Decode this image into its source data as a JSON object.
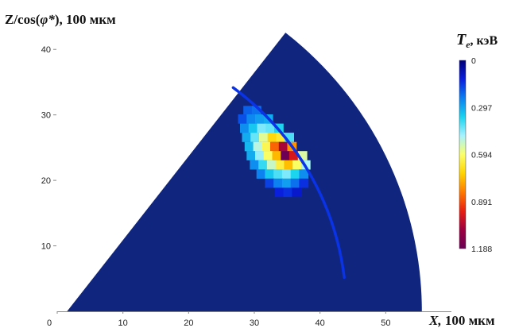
{
  "chart_data": {
    "type": "heatmap",
    "title": "",
    "ylabel_base": "Z/cos(",
    "ylabel_symbol": "φ*",
    "ylabel_tail": "), 100 мкм",
    "xlabel_base": "X,",
    "xlabel_unit": " 100 мкм",
    "colorbar_symbol": "T",
    "colorbar_sub": "e",
    "colorbar_unit": ", кэВ",
    "xlim": [
      0,
      60
    ],
    "ylim": [
      0,
      45
    ],
    "x_ticks": [
      "0",
      "10",
      "20",
      "30",
      "40",
      "50"
    ],
    "y_ticks": [
      "10",
      "20",
      "30",
      "40"
    ],
    "colorbar_ticks": [
      "0",
      "0.297",
      "0.594",
      "0.891",
      "1.188"
    ],
    "colorbar_range": [
      0,
      1.188
    ],
    "colorscale": [
      "#00007a",
      "#0a1edc",
      "#0c7ff0",
      "#19d3ef",
      "#a8f2ff",
      "#fbff6a",
      "#ffd400",
      "#ff7a00",
      "#e81f12",
      "#9c0040",
      "#6a0055"
    ],
    "background_color": "#10267e",
    "arc_color": "#0a32e6",
    "sector": {
      "apex": [
        1.5,
        0
      ],
      "radius": 54,
      "angle_deg": 52
    },
    "front_arc": {
      "center": [
        1.5,
        0
      ],
      "radius": 42.5,
      "angle_from_deg": 7,
      "angle_to_deg": 53.5
    },
    "hot_spot": {
      "cell_size": [
        1.35,
        1.35
      ],
      "cells": [
        {
          "x": 29.0,
          "y": 30.7,
          "t": 0.2
        },
        {
          "x": 30.3,
          "y": 30.7,
          "t": 0.22
        },
        {
          "x": 28.2,
          "y": 29.4,
          "t": 0.18
        },
        {
          "x": 29.5,
          "y": 29.4,
          "t": 0.25
        },
        {
          "x": 30.8,
          "y": 29.4,
          "t": 0.28
        },
        {
          "x": 32.1,
          "y": 29.4,
          "t": 0.3
        },
        {
          "x": 28.5,
          "y": 28.0,
          "t": 0.26
        },
        {
          "x": 29.8,
          "y": 28.0,
          "t": 0.34
        },
        {
          "x": 31.1,
          "y": 28.0,
          "t": 0.44
        },
        {
          "x": 32.4,
          "y": 28.0,
          "t": 0.42
        },
        {
          "x": 33.7,
          "y": 28.0,
          "t": 0.36
        },
        {
          "x": 28.8,
          "y": 26.6,
          "t": 0.3
        },
        {
          "x": 30.1,
          "y": 26.6,
          "t": 0.42
        },
        {
          "x": 31.4,
          "y": 26.6,
          "t": 0.56
        },
        {
          "x": 32.7,
          "y": 26.6,
          "t": 0.7
        },
        {
          "x": 34.0,
          "y": 26.6,
          "t": 0.66
        },
        {
          "x": 35.3,
          "y": 26.6,
          "t": 0.4
        },
        {
          "x": 29.2,
          "y": 25.2,
          "t": 0.32
        },
        {
          "x": 30.5,
          "y": 25.2,
          "t": 0.5
        },
        {
          "x": 31.8,
          "y": 25.2,
          "t": 0.62
        },
        {
          "x": 33.1,
          "y": 25.2,
          "t": 0.86
        },
        {
          "x": 34.4,
          "y": 25.2,
          "t": 1.05
        },
        {
          "x": 35.7,
          "y": 25.2,
          "t": 0.8
        },
        {
          "x": 29.5,
          "y": 23.8,
          "t": 0.3
        },
        {
          "x": 30.8,
          "y": 23.8,
          "t": 0.46
        },
        {
          "x": 32.1,
          "y": 23.8,
          "t": 0.6
        },
        {
          "x": 33.4,
          "y": 23.8,
          "t": 0.75
        },
        {
          "x": 34.7,
          "y": 23.8,
          "t": 1.18
        },
        {
          "x": 36.0,
          "y": 23.8,
          "t": 0.98
        },
        {
          "x": 37.3,
          "y": 23.8,
          "t": 0.55
        },
        {
          "x": 30.0,
          "y": 22.4,
          "t": 0.26
        },
        {
          "x": 31.3,
          "y": 22.4,
          "t": 0.38
        },
        {
          "x": 32.6,
          "y": 22.4,
          "t": 0.52
        },
        {
          "x": 33.9,
          "y": 22.4,
          "t": 0.64
        },
        {
          "x": 35.2,
          "y": 22.4,
          "t": 0.74
        },
        {
          "x": 36.5,
          "y": 22.4,
          "t": 0.6
        },
        {
          "x": 37.8,
          "y": 22.4,
          "t": 0.48
        },
        {
          "x": 31.0,
          "y": 21.0,
          "t": 0.24
        },
        {
          "x": 32.3,
          "y": 21.0,
          "t": 0.34
        },
        {
          "x": 33.6,
          "y": 21.0,
          "t": 0.4
        },
        {
          "x": 34.9,
          "y": 21.0,
          "t": 0.44
        },
        {
          "x": 36.2,
          "y": 21.0,
          "t": 0.36
        },
        {
          "x": 37.5,
          "y": 21.0,
          "t": 0.26
        },
        {
          "x": 32.3,
          "y": 19.6,
          "t": 0.16
        },
        {
          "x": 33.6,
          "y": 19.6,
          "t": 0.24
        },
        {
          "x": 34.9,
          "y": 19.6,
          "t": 0.28
        },
        {
          "x": 36.2,
          "y": 19.6,
          "t": 0.22
        },
        {
          "x": 37.5,
          "y": 19.6,
          "t": 0.14
        },
        {
          "x": 33.8,
          "y": 18.2,
          "t": 0.12
        },
        {
          "x": 35.1,
          "y": 18.2,
          "t": 0.14
        },
        {
          "x": 36.4,
          "y": 18.2,
          "t": 0.1
        }
      ]
    }
  }
}
